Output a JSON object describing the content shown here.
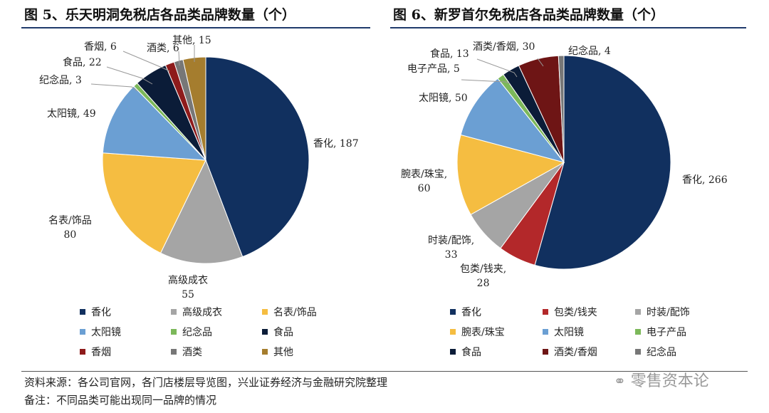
{
  "chart_data": [
    {
      "type": "pie",
      "title": "图 5、乐天明洞免税店各品类品牌数量（个）",
      "categories": [
        "香化",
        "高级成衣",
        "名表/饰品",
        "太阳镜",
        "纪念品",
        "食品",
        "香烟",
        "酒类",
        "其他"
      ],
      "values": [
        187,
        55,
        80,
        49,
        3,
        22,
        6,
        6,
        15
      ],
      "colors": [
        "#11305f",
        "#a5a5a5",
        "#f5bd41",
        "#6b9fd3",
        "#7cb85a",
        "#0b1c38",
        "#8e1b1b",
        "#777777",
        "#a57d2e"
      ],
      "legend_position": "bottom",
      "direction": "clockwise from top"
    },
    {
      "type": "pie",
      "title": "图 6、新罗首尔免税店各品类品牌数量（个）",
      "categories": [
        "香化",
        "包类/钱夹",
        "时装/配饰",
        "腕表/珠宝",
        "太阳镜",
        "电子产品",
        "食品",
        "酒类/香烟",
        "纪念品"
      ],
      "values": [
        266,
        28,
        33,
        60,
        50,
        5,
        13,
        30,
        4
      ],
      "colors": [
        "#11305f",
        "#b3282a",
        "#a5a5a5",
        "#f5bd41",
        "#6b9fd3",
        "#7cb85a",
        "#0b1c38",
        "#6e1515",
        "#777777"
      ],
      "legend_position": "bottom",
      "direction": "clockwise from top"
    }
  ],
  "footer": {
    "source": "资料来源：各公司官网，各门店楼层导览图，兴业证券经济与金融研究院整理",
    "note": "备注：不同品类可能出现同一品牌的情况"
  },
  "watermark": "零售资本论"
}
